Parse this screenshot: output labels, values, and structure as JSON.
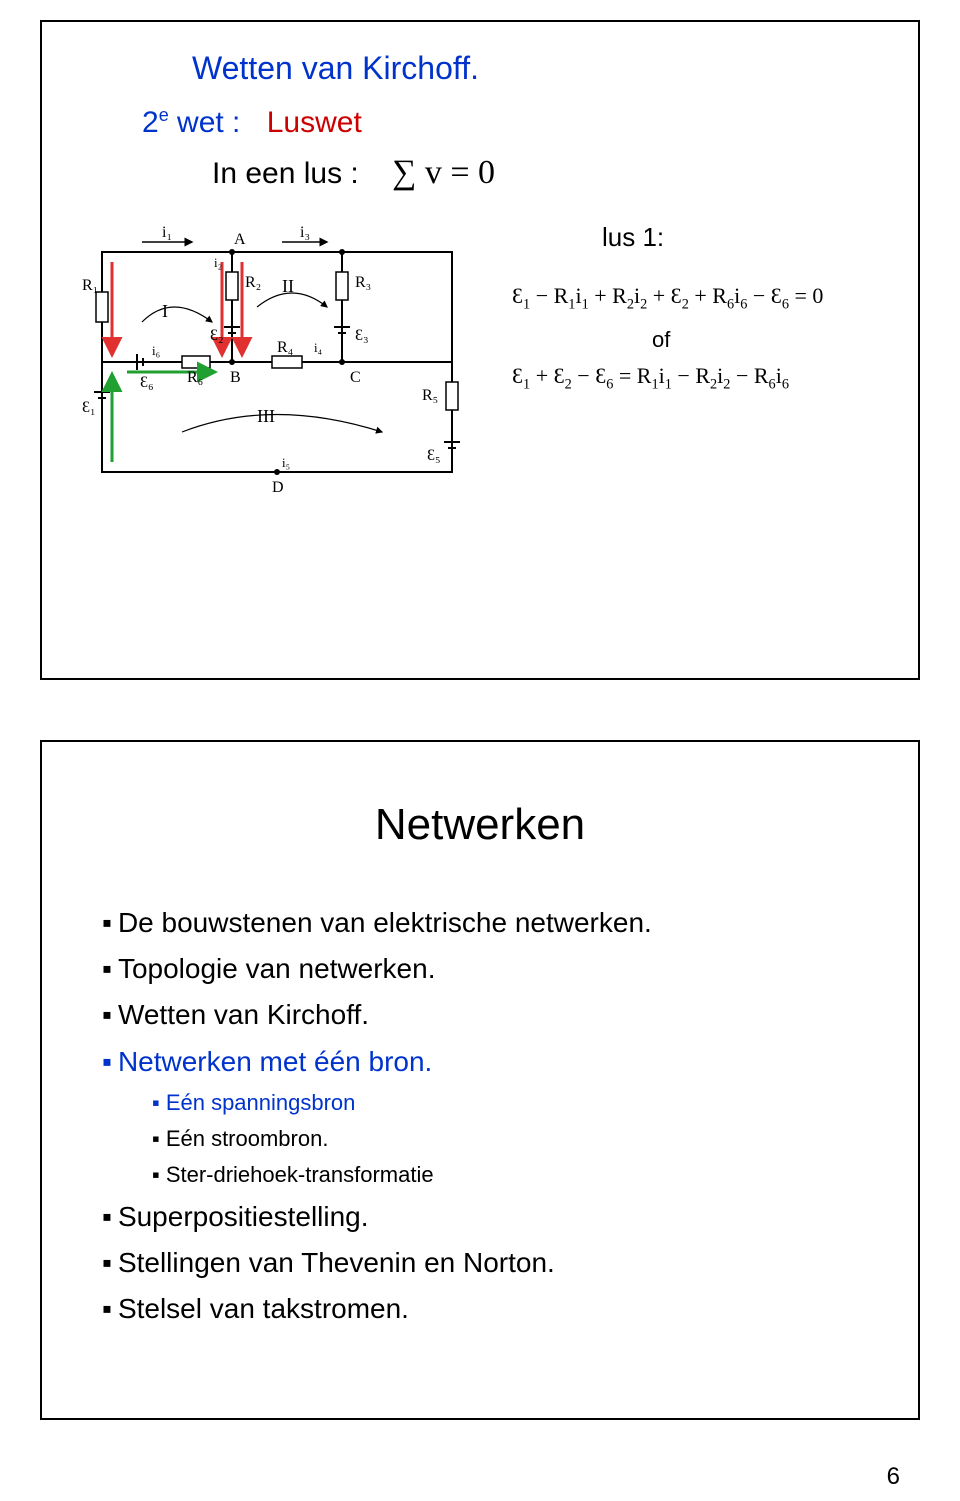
{
  "slide1": {
    "title": "Wetten van Kirchoff.",
    "subsection_label_html": "2<sup>e</sup> wet :",
    "subsection_value": "Luswet",
    "body_line_prefix": "In een lus :",
    "body_line_expr": "∑ v = 0",
    "lus_label": "lus 1:",
    "eq1_html": "Ɛ<sub>1</sub> − R<sub>1</sub>i<sub>1</sub> + R<sub>2</sub>i<sub>2</sub> + Ɛ<sub>2</sub> + R<sub>6</sub>i<sub>6</sub> − Ɛ<sub>6</sub> = 0",
    "of_text": "of",
    "eq2_html": "Ɛ<sub>1</sub> + Ɛ<sub>2</sub> − Ɛ<sub>6</sub> = R<sub>1</sub>i<sub>1</sub> − R<sub>2</sub>i<sub>2</sub> − R<sub>6</sub>i<sub>6</sub>",
    "circuit": {
      "node_labels": [
        "A",
        "B",
        "C",
        "D"
      ],
      "resistors": [
        "R₁",
        "R₂",
        "R₃",
        "R₄",
        "R₅",
        "R₆"
      ],
      "emfs": [
        "Ɛ₁",
        "Ɛ₂",
        "Ɛ₃",
        "Ɛ₅",
        "Ɛ₆"
      ],
      "currents": [
        "i₁",
        "i₂",
        "i₃",
        "i₄",
        "i₅",
        "i₆"
      ],
      "loop_labels": [
        "I",
        "II",
        "III"
      ],
      "arrow_colors": {
        "red": "#e03030",
        "green": "#20a030"
      },
      "stroke_color": "#000000"
    }
  },
  "slide2": {
    "title": "Netwerken",
    "bullets": [
      {
        "level": 1,
        "text": "De bouwstenen van elektrische netwerken.",
        "color": "#000000"
      },
      {
        "level": 1,
        "text": "Topologie van netwerken.",
        "color": "#000000"
      },
      {
        "level": 1,
        "text": "Wetten van Kirchoff.",
        "color": "#000000"
      },
      {
        "level": 1,
        "text": "Netwerken met één bron.",
        "color": "#0033cc"
      },
      {
        "level": 2,
        "text": "Eén spanningsbron",
        "color": "#0033cc"
      },
      {
        "level": 2,
        "text": "Eén stroombron.",
        "color": "#000000"
      },
      {
        "level": 2,
        "text": "Ster-driehoek-transformatie",
        "color": "#000000"
      },
      {
        "level": 1,
        "text": "Superpositiestelling.",
        "color": "#000000"
      },
      {
        "level": 1,
        "text": "Stellingen van Thevenin en Norton.",
        "color": "#000000"
      },
      {
        "level": 1,
        "text": "Stelsel van takstromen.",
        "color": "#000000"
      }
    ]
  },
  "page_number": "6"
}
